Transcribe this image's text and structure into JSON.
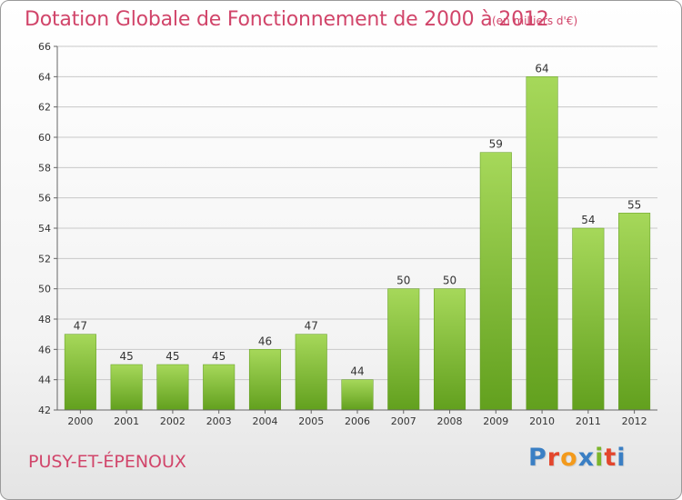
{
  "header": {
    "title": "Dotation Globale de Fonctionnement de 2000 à 2012",
    "unit": "(en milliers d'€)"
  },
  "footer": {
    "commune": "PUSY-ET-ÉPENOUX",
    "logo_text": "Proxiti"
  },
  "colors": {
    "title": "#d1456a",
    "bar_light": "#a6d85a",
    "bar_dark": "#62a01e",
    "grid": "#c8c8c8"
  },
  "chart_data": {
    "type": "bar",
    "categories": [
      "2000",
      "2001",
      "2002",
      "2003",
      "2004",
      "2005",
      "2006",
      "2007",
      "2008",
      "2009",
      "2010",
      "2011",
      "2012"
    ],
    "values": [
      47,
      45,
      45,
      45,
      46,
      47,
      44,
      50,
      50,
      59,
      64,
      54,
      55
    ],
    "yticks": [
      42,
      44,
      46,
      48,
      50,
      52,
      54,
      56,
      58,
      60,
      62,
      64,
      66
    ],
    "ylim": [
      42,
      66
    ],
    "grid": true
  }
}
